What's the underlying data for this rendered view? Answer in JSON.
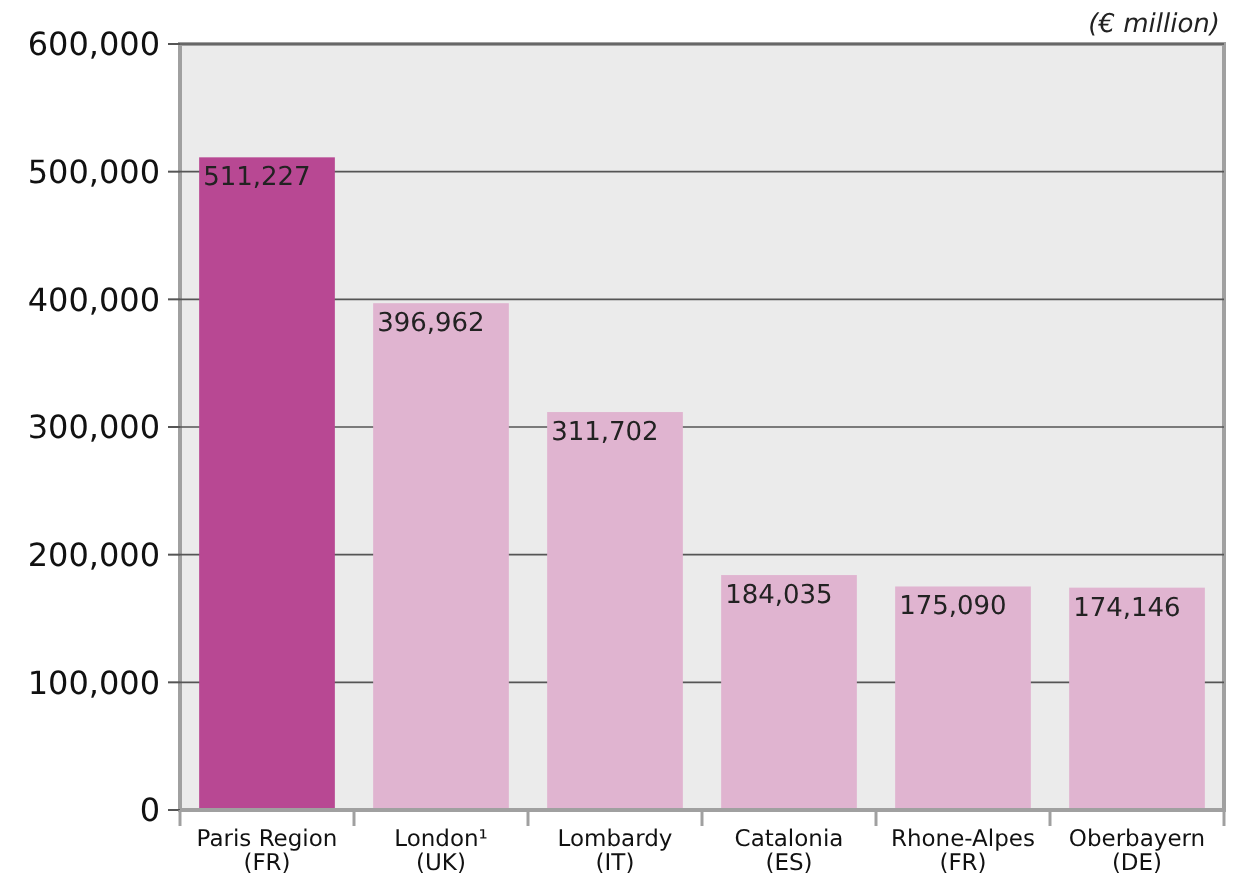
{
  "chart_data": {
    "type": "bar",
    "annotations": [
      "(€ million)"
    ],
    "categories": [
      "Paris Region\n(FR)",
      "London¹\n(UK)",
      "Lombardy\n(IT)",
      "Catalonia\n(ES)",
      "Rhone-Alpes\n(FR)",
      "Oberbayern\n(DE)"
    ],
    "values": [
      511227,
      396962,
      311702,
      184035,
      175090,
      174146
    ],
    "colors": [
      "#b84893",
      "#e0b4d0",
      "#e0b4d0",
      "#e0b4d0",
      "#e0b4d0",
      "#e0b4d0"
    ],
    "ylim": [
      0,
      600000
    ],
    "yticks": [
      {
        "value": 0,
        "label": "0"
      },
      {
        "value": 100000,
        "label": "100,000"
      },
      {
        "value": 200000,
        "label": "200,000"
      },
      {
        "value": 300000,
        "label": "300,000"
      },
      {
        "value": 400000,
        "label": "400,000"
      },
      {
        "value": 500000,
        "label": "500,000"
      },
      {
        "value": 600000,
        "label": "600,000"
      }
    ],
    "value_labels": [
      "511,227",
      "396,962",
      "311,702",
      "184,035",
      "175,090",
      "174,146"
    ],
    "grid": "y"
  }
}
